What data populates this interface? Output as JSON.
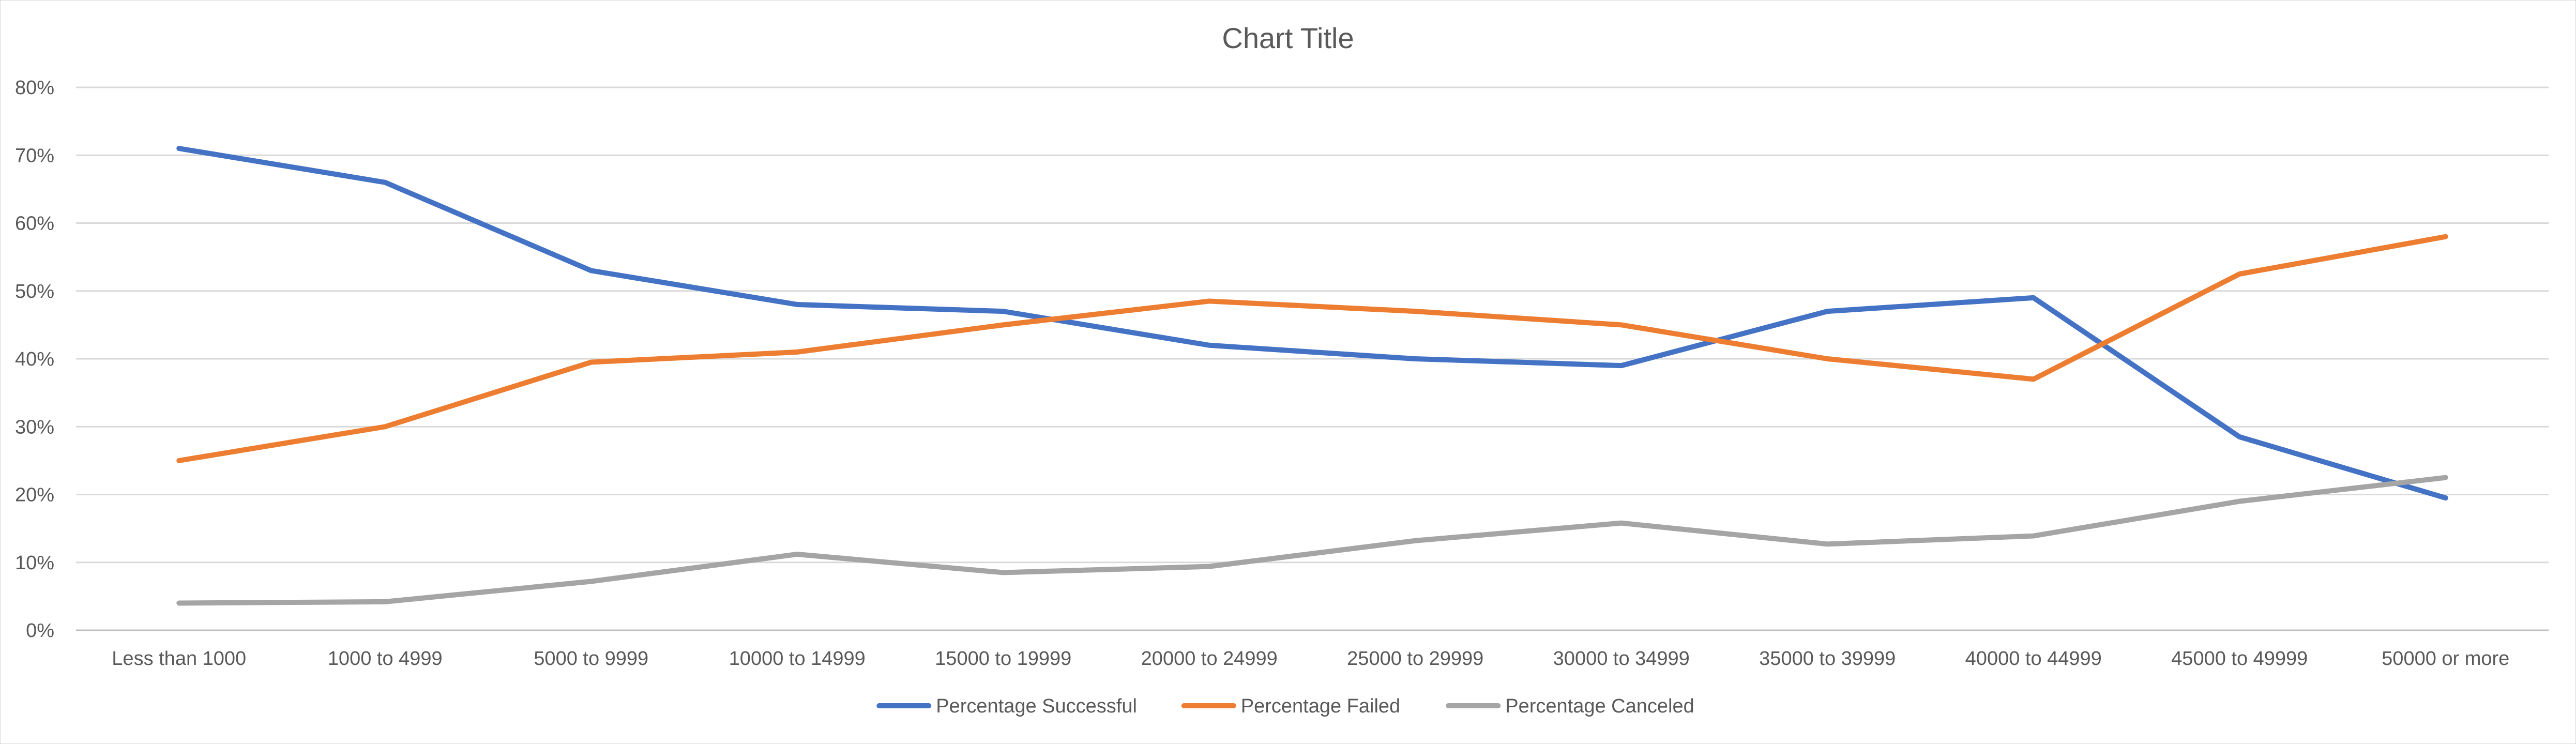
{
  "chart_data": {
    "type": "line",
    "title": "Chart Title",
    "xlabel": "",
    "ylabel": "",
    "ylim": [
      0,
      80
    ],
    "y_tick_values": [
      0,
      10,
      20,
      30,
      40,
      50,
      60,
      70,
      80
    ],
    "y_tick_labels": [
      "0%",
      "10%",
      "20%",
      "30%",
      "40%",
      "50%",
      "60%",
      "70%",
      "80%"
    ],
    "grid": true,
    "legend_position": "bottom",
    "categories": [
      "Less than 1000",
      "1000 to 4999",
      "5000 to 9999",
      "10000 to 14999",
      "15000 to 19999",
      "20000 to 24999",
      "25000 to 29999",
      "30000 to 34999",
      "35000 to 39999",
      "40000 to 44999",
      "45000 to 49999",
      "50000 or more"
    ],
    "series": [
      {
        "name": "Percentage Successful",
        "color": "#4472C4",
        "values": [
          71,
          66,
          53,
          48,
          47,
          42,
          40,
          39,
          47,
          49,
          28.5,
          19.5
        ]
      },
      {
        "name": "Percentage Failed",
        "color": "#ED7D31",
        "values": [
          25,
          30,
          39.5,
          41,
          45,
          48.5,
          47,
          45,
          40,
          37,
          52.5,
          58
        ]
      },
      {
        "name": "Percentage Canceled",
        "color": "#A5A5A5",
        "values": [
          4,
          4.2,
          7.2,
          11.2,
          8.5,
          9.4,
          13.2,
          15.8,
          12.7,
          13.9,
          19,
          22.5
        ]
      }
    ]
  }
}
